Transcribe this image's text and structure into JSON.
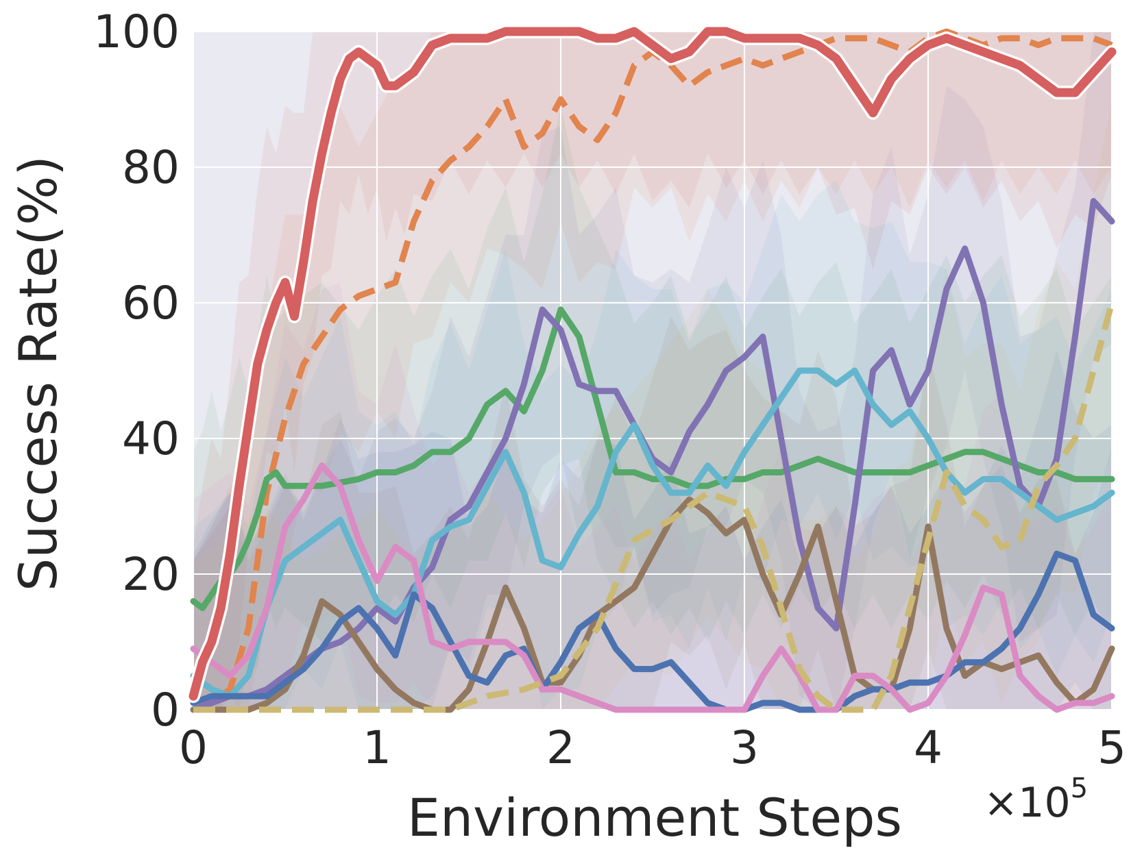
{
  "chart_data": {
    "type": "line",
    "title": "",
    "xlabel": "Environment Steps",
    "ylabel": "Success Rate(%)",
    "x_multiplier": "×10",
    "x_multiplier_exponent": "5",
    "xlim": [
      0,
      5
    ],
    "ylim": [
      0,
      100
    ],
    "xticks": [
      0,
      1,
      2,
      3,
      4,
      5
    ],
    "xtick_labels": [
      "0",
      "1",
      "2",
      "3",
      "4",
      "5"
    ],
    "yticks": [
      0,
      20,
      40,
      60,
      80,
      100
    ],
    "ytick_labels": [
      "0",
      "20",
      "40",
      "60",
      "80",
      "100"
    ],
    "grid": true,
    "background": "#eaeaf2",
    "shaded_bands": true,
    "series": [
      {
        "color": "#d65f5f",
        "style": "solid",
        "emphasis": true,
        "x": [
          0,
          0.05,
          0.1,
          0.15,
          0.2,
          0.25,
          0.3,
          0.35,
          0.4,
          0.45,
          0.5,
          0.55,
          0.6,
          0.65,
          0.7,
          0.75,
          0.8,
          0.85,
          0.9,
          0.95,
          1.0,
          1.05,
          1.1,
          1.15,
          1.2,
          1.3,
          1.4,
          1.5,
          1.6,
          1.7,
          1.8,
          1.9,
          2.0,
          2.1,
          2.2,
          2.3,
          2.4,
          2.5,
          2.6,
          2.7,
          2.8,
          2.9,
          3.0,
          3.1,
          3.2,
          3.3,
          3.4,
          3.5,
          3.6,
          3.7,
          3.8,
          3.9,
          4.0,
          4.1,
          4.2,
          4.3,
          4.4,
          4.5,
          4.6,
          4.7,
          4.8,
          4.9,
          5.0
        ],
        "y": [
          2,
          7,
          10,
          15,
          23,
          33,
          42,
          51,
          56,
          60,
          63,
          58,
          66,
          75,
          82,
          88,
          93,
          96,
          97,
          96,
          95,
          92,
          92,
          93,
          94,
          98,
          99,
          99,
          99,
          100,
          100,
          100,
          100,
          100,
          99,
          99,
          100,
          98,
          96,
          97,
          100,
          100,
          99,
          99,
          99,
          99,
          98,
          96,
          92,
          88,
          93,
          96,
          98,
          99,
          98,
          97,
          96,
          95,
          93,
          91,
          91,
          94,
          97
        ]
      },
      {
        "color": "#e1844e",
        "style": "dashed",
        "x": [
          0,
          0.1,
          0.2,
          0.3,
          0.4,
          0.5,
          0.6,
          0.7,
          0.8,
          0.9,
          1.0,
          1.1,
          1.2,
          1.3,
          1.4,
          1.5,
          1.6,
          1.7,
          1.8,
          1.9,
          2.0,
          2.1,
          2.2,
          2.3,
          2.4,
          2.5,
          2.6,
          2.7,
          2.8,
          2.9,
          3.0,
          3.1,
          3.2,
          3.3,
          3.4,
          3.5,
          3.6,
          3.7,
          3.8,
          3.9,
          4.0,
          4.1,
          4.2,
          4.3,
          4.4,
          4.5,
          4.6,
          4.7,
          4.8,
          4.9,
          5.0
        ],
        "y": [
          0,
          1,
          3,
          12,
          32,
          43,
          51,
          55,
          59,
          61,
          62,
          63,
          72,
          78,
          81,
          83,
          86,
          90,
          83,
          85,
          90,
          86,
          84,
          88,
          95,
          97,
          95,
          92,
          94,
          95,
          96,
          95,
          96,
          97,
          98,
          99,
          99,
          99,
          98,
          97,
          99,
          100,
          99,
          98,
          99,
          99,
          98,
          99,
          99,
          99,
          98
        ]
      },
      {
        "color": "#55a868",
        "style": "solid",
        "x": [
          0,
          0.05,
          0.1,
          0.15,
          0.2,
          0.25,
          0.3,
          0.35,
          0.4,
          0.45,
          0.5,
          0.7,
          0.9,
          1.0,
          1.1,
          1.2,
          1.3,
          1.4,
          1.5,
          1.6,
          1.7,
          1.8,
          1.9,
          2.0,
          2.1,
          2.2,
          2.3,
          2.4,
          2.5,
          2.6,
          2.7,
          2.8,
          2.9,
          3.0,
          3.1,
          3.2,
          3.3,
          3.4,
          3.5,
          3.6,
          3.7,
          3.8,
          3.9,
          4.0,
          4.1,
          4.2,
          4.3,
          4.4,
          4.5,
          4.6,
          4.7,
          4.8,
          4.9,
          5.0
        ],
        "y": [
          16,
          15,
          17,
          19,
          20,
          22,
          25,
          29,
          34,
          35,
          33,
          33,
          34,
          35,
          35,
          36,
          38,
          38,
          40,
          45,
          47,
          44,
          50,
          59,
          55,
          45,
          35,
          35,
          34,
          34,
          33,
          33,
          34,
          34,
          35,
          35,
          36,
          37,
          36,
          35,
          35,
          35,
          35,
          36,
          37,
          38,
          38,
          37,
          36,
          35,
          35,
          34,
          34,
          34
        ]
      },
      {
        "color": "#8172b3",
        "style": "solid",
        "x": [
          0,
          0.1,
          0.2,
          0.3,
          0.4,
          0.5,
          0.6,
          0.7,
          0.8,
          0.9,
          1.0,
          1.1,
          1.2,
          1.3,
          1.4,
          1.5,
          1.6,
          1.7,
          1.8,
          1.9,
          2.0,
          2.1,
          2.2,
          2.3,
          2.4,
          2.5,
          2.6,
          2.7,
          2.8,
          2.9,
          3.0,
          3.1,
          3.2,
          3.3,
          3.4,
          3.5,
          3.6,
          3.7,
          3.8,
          3.9,
          4.0,
          4.1,
          4.2,
          4.3,
          4.4,
          4.5,
          4.6,
          4.7,
          4.8,
          4.9,
          5.0
        ],
        "y": [
          0,
          1,
          2,
          2,
          3,
          5,
          7,
          9,
          10,
          12,
          15,
          13,
          18,
          21,
          28,
          30,
          35,
          40,
          48,
          59,
          56,
          48,
          47,
          47,
          42,
          37,
          35,
          41,
          45,
          50,
          52,
          55,
          40,
          25,
          15,
          12,
          30,
          50,
          53,
          45,
          50,
          62,
          68,
          60,
          45,
          33,
          30,
          37,
          55,
          75,
          72
        ]
      },
      {
        "color": "#64b5cd",
        "style": "solid",
        "x": [
          0,
          0.1,
          0.2,
          0.3,
          0.4,
          0.5,
          0.6,
          0.7,
          0.8,
          0.9,
          1.0,
          1.1,
          1.2,
          1.3,
          1.4,
          1.5,
          1.6,
          1.7,
          1.8,
          1.9,
          2.0,
          2.1,
          2.2,
          2.3,
          2.4,
          2.5,
          2.6,
          2.7,
          2.8,
          2.9,
          3.0,
          3.1,
          3.2,
          3.3,
          3.4,
          3.5,
          3.6,
          3.7,
          3.8,
          3.9,
          4.0,
          4.1,
          4.2,
          4.3,
          4.4,
          4.5,
          4.6,
          4.7,
          4.8,
          4.9,
          5.0
        ],
        "y": [
          5,
          3,
          2,
          5,
          15,
          22,
          24,
          26,
          28,
          22,
          16,
          14,
          17,
          25,
          27,
          28,
          33,
          38,
          32,
          22,
          21,
          26,
          30,
          38,
          42,
          36,
          32,
          32,
          36,
          33,
          38,
          42,
          46,
          50,
          50,
          48,
          50,
          45,
          42,
          44,
          40,
          35,
          32,
          34,
          34,
          32,
          30,
          28,
          29,
          30,
          32
        ]
      },
      {
        "color": "#937860",
        "style": "solid",
        "x": [
          0,
          0.1,
          0.2,
          0.3,
          0.4,
          0.5,
          0.6,
          0.7,
          0.8,
          0.9,
          1.0,
          1.1,
          1.2,
          1.3,
          1.4,
          1.5,
          1.6,
          1.7,
          1.8,
          1.9,
          2.0,
          2.1,
          2.2,
          2.3,
          2.4,
          2.5,
          2.6,
          2.7,
          2.8,
          2.9,
          3.0,
          3.1,
          3.2,
          3.3,
          3.4,
          3.5,
          3.6,
          3.7,
          3.8,
          3.9,
          4.0,
          4.1,
          4.2,
          4.3,
          4.4,
          4.5,
          4.6,
          4.7,
          4.8,
          4.9,
          5.0
        ],
        "y": [
          0,
          0,
          0,
          0,
          1,
          3,
          8,
          16,
          14,
          10,
          6,
          3,
          1,
          0,
          0,
          3,
          10,
          18,
          12,
          4,
          4,
          8,
          14,
          16,
          18,
          23,
          28,
          31,
          29,
          26,
          28,
          20,
          14,
          20,
          27,
          16,
          5,
          3,
          3,
          12,
          27,
          12,
          5,
          7,
          6,
          7,
          8,
          4,
          1,
          3,
          9
        ]
      },
      {
        "color": "#4c72b0",
        "style": "solid",
        "x": [
          0,
          0.1,
          0.2,
          0.3,
          0.4,
          0.5,
          0.6,
          0.7,
          0.8,
          0.9,
          1.0,
          1.1,
          1.2,
          1.3,
          1.4,
          1.5,
          1.6,
          1.7,
          1.8,
          1.9,
          2.0,
          2.1,
          2.2,
          2.3,
          2.4,
          2.5,
          2.6,
          2.7,
          2.8,
          2.9,
          3.0,
          3.1,
          3.2,
          3.3,
          3.4,
          3.5,
          3.6,
          3.7,
          3.8,
          3.9,
          4.0,
          4.1,
          4.2,
          4.3,
          4.4,
          4.5,
          4.6,
          4.7,
          4.8,
          4.9,
          5.0
        ],
        "y": [
          1,
          2,
          2,
          2,
          2,
          4,
          6,
          9,
          13,
          15,
          12,
          8,
          17,
          15,
          10,
          5,
          4,
          8,
          9,
          3,
          7,
          12,
          14,
          9,
          6,
          6,
          7,
          4,
          1,
          0,
          0,
          1,
          1,
          0,
          0,
          0,
          2,
          3,
          3,
          4,
          4,
          5,
          7,
          7,
          9,
          12,
          17,
          23,
          22,
          14,
          12
        ]
      },
      {
        "color": "#da8bc3",
        "style": "solid",
        "x": [
          0,
          0.1,
          0.2,
          0.3,
          0.4,
          0.5,
          0.6,
          0.7,
          0.8,
          0.9,
          1.0,
          1.1,
          1.2,
          1.3,
          1.4,
          1.5,
          1.6,
          1.7,
          1.8,
          1.9,
          2.0,
          2.1,
          2.2,
          2.3,
          2.4,
          2.5,
          2.6,
          2.7,
          2.8,
          2.9,
          3.0,
          3.1,
          3.2,
          3.3,
          3.4,
          3.5,
          3.6,
          3.7,
          3.8,
          3.9,
          4.0,
          4.1,
          4.2,
          4.3,
          4.4,
          4.5,
          4.6,
          4.7,
          4.8,
          4.9,
          5.0
        ],
        "y": [
          9,
          7,
          5,
          8,
          15,
          27,
          31,
          36,
          33,
          25,
          19,
          24,
          22,
          10,
          9,
          10,
          10,
          10,
          8,
          3,
          3,
          2,
          1,
          0,
          0,
          0,
          0,
          0,
          0,
          0,
          0,
          5,
          9,
          5,
          0,
          0,
          5,
          5,
          3,
          0,
          1,
          5,
          11,
          18,
          17,
          5,
          2,
          0,
          1,
          1,
          2
        ]
      },
      {
        "color": "#ccb974",
        "style": "dashed",
        "x": [
          0,
          0.2,
          0.4,
          0.6,
          0.8,
          1.0,
          1.2,
          1.4,
          1.6,
          1.8,
          2.0,
          2.2,
          2.4,
          2.6,
          2.8,
          3.0,
          3.1,
          3.2,
          3.3,
          3.4,
          3.5,
          3.6,
          3.7,
          3.8,
          3.9,
          4.0,
          4.1,
          4.2,
          4.3,
          4.4,
          4.5,
          4.6,
          4.7,
          4.8,
          4.9,
          5.0
        ],
        "y": [
          0,
          0,
          0,
          0,
          0,
          0,
          0,
          0,
          2,
          3,
          5,
          12,
          25,
          28,
          32,
          30,
          24,
          15,
          6,
          2,
          0,
          0,
          0,
          5,
          15,
          25,
          35,
          30,
          28,
          24,
          25,
          33,
          36,
          40,
          50,
          60
        ]
      }
    ]
  }
}
